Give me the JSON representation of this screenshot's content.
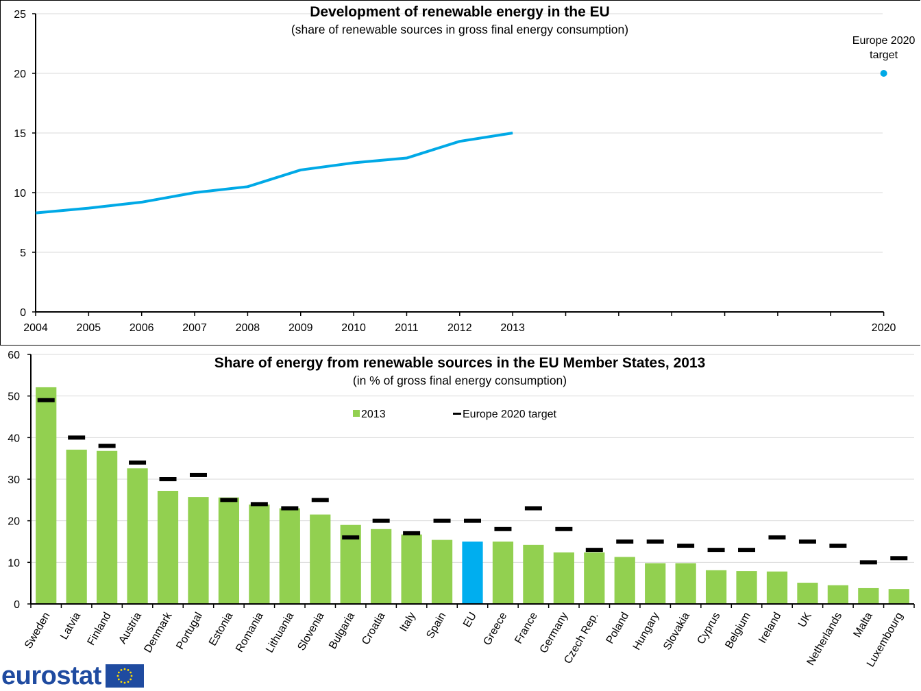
{
  "chart_data": [
    {
      "type": "line",
      "title": "Development of renewable energy in the EU",
      "subtitle": "(share of renewable sources in gross final energy consumption)",
      "xlabel": "",
      "ylabel": "",
      "x_ticks": [
        "2004",
        "2005",
        "2006",
        "2007",
        "2008",
        "2009",
        "2010",
        "2011",
        "2012",
        "2013",
        "",
        "",
        "",
        "",
        "",
        "",
        "2020"
      ],
      "ylim": [
        0,
        25
      ],
      "y_ticks": [
        0,
        5,
        10,
        15,
        20,
        25
      ],
      "grid": true,
      "series": [
        {
          "name": "EU",
          "color": "#00a9e6",
          "x": [
            "2004",
            "2005",
            "2006",
            "2007",
            "2008",
            "2009",
            "2010",
            "2011",
            "2012",
            "2013"
          ],
          "values": [
            8.3,
            8.7,
            9.2,
            10.0,
            10.5,
            11.9,
            12.5,
            12.9,
            14.3,
            15.0
          ]
        }
      ],
      "target": {
        "label_line1": "Europe 2020",
        "label_line2": "target",
        "x": "2020",
        "value": 20,
        "color": "#00a9e6"
      }
    },
    {
      "type": "bar",
      "title": "Share of energy from renewable sources in the EU Member States, 2013",
      "subtitle": "(in % of gross final energy consumption)",
      "xlabel": "",
      "ylabel": "",
      "ylim": [
        0,
        60
      ],
      "y_ticks": [
        0,
        10,
        20,
        30,
        40,
        50,
        60
      ],
      "grid": true,
      "legend": {
        "placement": "top-center",
        "items": [
          {
            "label": "2013",
            "color": "#92d050",
            "marker": "square"
          },
          {
            "label": "Europe 2020 target",
            "color": "#000000",
            "marker": "dash"
          }
        ]
      },
      "categories": [
        "Sweden",
        "Latvia",
        "Finland",
        "Austria",
        "Denmark",
        "Portugal",
        "Estonia",
        "Romania",
        "Lithuania",
        "Slovenia",
        "Bulgaria",
        "Croatia",
        "Italy",
        "Spain",
        "EU",
        "Greece",
        "France",
        "Germany",
        "Czech Rep.",
        "Poland",
        "Hungary",
        "Slovakia",
        "Cyprus",
        "Belgium",
        "Ireland",
        "UK",
        "Netherlands",
        "Malta",
        "Luxembourg"
      ],
      "highlight_category": "EU",
      "bar_color": "#92d050",
      "highlight_color": "#00aeef",
      "series": [
        {
          "name": "2013",
          "values": [
            52.1,
            37.1,
            36.8,
            32.6,
            27.2,
            25.7,
            25.6,
            23.9,
            23.0,
            21.5,
            19.0,
            18.0,
            16.7,
            15.4,
            15.0,
            15.0,
            14.2,
            12.4,
            12.4,
            11.3,
            9.8,
            9.8,
            8.1,
            7.9,
            7.8,
            5.1,
            4.5,
            3.8,
            3.6
          ]
        },
        {
          "name": "Europe 2020 target",
          "values": [
            49,
            40,
            38,
            34,
            30,
            31,
            25,
            24,
            23,
            25,
            16,
            20,
            17,
            20,
            20,
            18,
            23,
            18,
            13,
            15,
            15,
            14,
            13,
            13,
            16,
            15,
            14,
            10,
            11
          ]
        }
      ]
    }
  ],
  "logo": {
    "text": "eurostat"
  }
}
